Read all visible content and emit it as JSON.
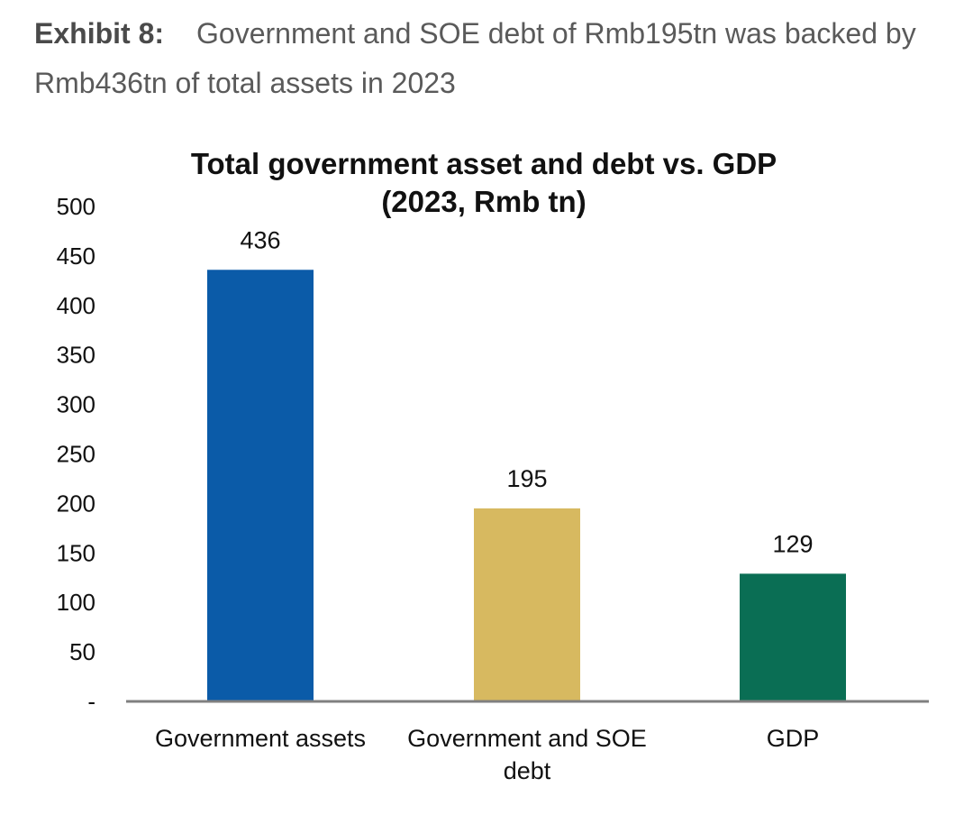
{
  "header": {
    "exhibit_label": "Exhibit 8:",
    "title": "Government and SOE debt of Rmb195tn was backed by Rmb436tn of total assets in 2023"
  },
  "chart_data": {
    "type": "bar",
    "title": "Total government asset and debt vs. GDP",
    "subtitle": "(2023, Rmb tn)",
    "categories": [
      [
        "Government assets"
      ],
      [
        "Government and SOE",
        "debt"
      ],
      [
        "GDP"
      ]
    ],
    "values": [
      436,
      195,
      129
    ],
    "value_labels": [
      "436",
      "195",
      "129"
    ],
    "colors": [
      "#0b5ba8",
      "#d7b960",
      "#0a6e54"
    ],
    "ylim": [
      0,
      500
    ],
    "yticks": [
      {
        "value": 0,
        "label": "-"
      },
      {
        "value": 50,
        "label": "50"
      },
      {
        "value": 100,
        "label": "100"
      },
      {
        "value": 150,
        "label": "150"
      },
      {
        "value": 200,
        "label": "200"
      },
      {
        "value": 250,
        "label": "250"
      },
      {
        "value": 300,
        "label": "300"
      },
      {
        "value": 350,
        "label": "350"
      },
      {
        "value": 400,
        "label": "400"
      },
      {
        "value": 450,
        "label": "450"
      },
      {
        "value": 500,
        "label": "500"
      }
    ],
    "xlabel": "",
    "ylabel": "",
    "grid": false,
    "legend": "none"
  }
}
